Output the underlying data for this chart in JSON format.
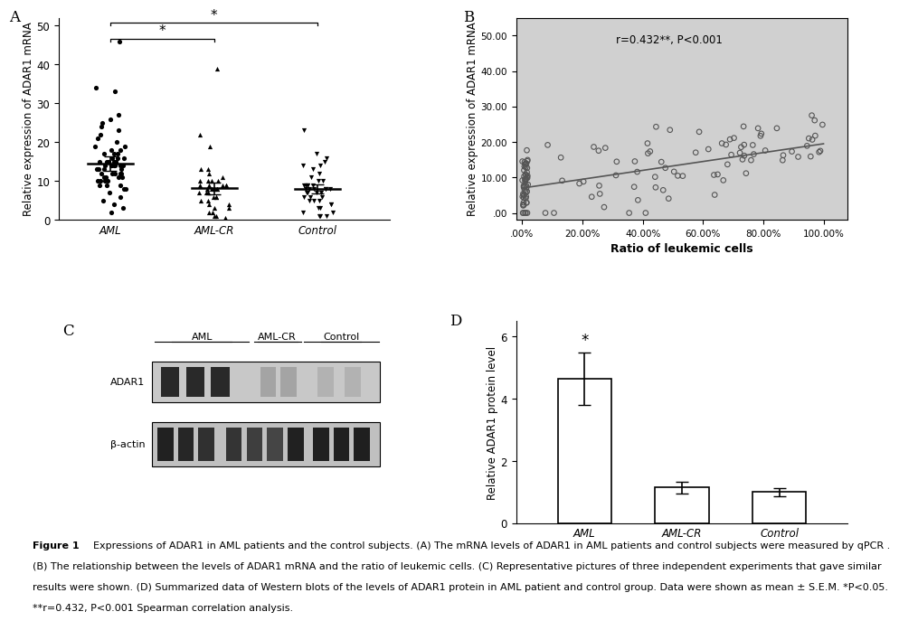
{
  "panel_A": {
    "label": "A",
    "groups": [
      "AML",
      "AML-CR",
      "Control"
    ],
    "AML_mean": 14.5,
    "AML_sem": 1.8,
    "AMLCR_mean": 8.2,
    "AMLCR_sem": 1.5,
    "Control_mean": 8.0,
    "Control_sem": 1.2,
    "ylabel": "Relative expression of ADAR1 mRNA",
    "ylim": [
      0,
      52
    ],
    "yticks": [
      0,
      10,
      20,
      30,
      40,
      50
    ],
    "AML_dots": [
      46,
      34,
      33,
      27,
      26,
      25,
      24,
      23,
      22,
      21,
      20,
      19,
      19,
      18,
      18,
      17,
      17,
      17,
      16,
      16,
      16,
      15,
      15,
      15,
      15,
      15,
      15,
      14,
      14,
      14,
      14,
      14,
      14,
      14,
      13,
      13,
      13,
      13,
      13,
      12,
      12,
      12,
      12,
      12,
      11,
      11,
      11,
      11,
      10,
      10,
      10,
      10,
      9,
      9,
      9,
      8,
      8,
      7,
      6,
      5,
      4,
      3,
      2
    ],
    "AMLCR_dots": [
      39,
      22,
      19,
      13,
      13,
      12,
      11,
      10,
      10,
      10,
      10,
      9,
      9,
      9,
      9,
      9,
      8,
      8,
      8,
      8,
      8,
      7,
      7,
      7,
      7,
      6,
      6,
      6,
      5,
      5,
      4,
      4,
      3,
      3,
      2,
      2,
      1,
      1,
      0.5
    ],
    "Control_dots": [
      23,
      17,
      16,
      15,
      14,
      14,
      13,
      12,
      11,
      10,
      10,
      9,
      9,
      9,
      9,
      9,
      8,
      8,
      8,
      8,
      8,
      8,
      7,
      7,
      7,
      7,
      6,
      6,
      6,
      5,
      5,
      5,
      4,
      4,
      3,
      3,
      2,
      2,
      1,
      1,
      1
    ]
  },
  "panel_B": {
    "label": "B",
    "annotation": "r=0.432**, P<0.001",
    "xlabel": "Ratio of leukemic cells",
    "ylabel": "Relative expression of ADAR1 mRNA",
    "xlim": [
      -0.02,
      1.08
    ],
    "ylim": [
      -2,
      55
    ],
    "xticks": [
      0.0,
      0.2,
      0.4,
      0.6,
      0.8,
      1.0
    ],
    "xticklabels": [
      ".00%",
      "20.00%",
      "40.00%",
      "60.00%",
      "80.00%",
      "100.00%"
    ],
    "yticks": [
      0,
      10,
      20,
      30,
      40,
      50
    ],
    "yticklabels": [
      ".00",
      "10.00",
      "20.00",
      "30.00",
      "40.00",
      "50.00"
    ],
    "slope": 12.5,
    "intercept": 7.0,
    "bg_color": "#d0d0d0"
  },
  "panel_D": {
    "label": "D",
    "groups": [
      "AML",
      "AML-CR",
      "Control"
    ],
    "values": [
      4.65,
      1.15,
      1.0
    ],
    "errors": [
      0.85,
      0.18,
      0.12
    ],
    "ylabel": "Relative ADAR1 protein level",
    "ylim": [
      0,
      6.5
    ],
    "yticks": [
      0,
      2,
      4,
      6
    ],
    "bar_color": "#ffffff",
    "bar_edgecolor": "#000000",
    "significance": "*"
  },
  "caption_line1": "Figure 1  Expressions of ADAR1 in AML patients and the control subjects. (A) The mRNA levels of ADAR1 in AML patients and control subjects were measured by qPCR .",
  "caption_line2": "(B) The relationship between the levels of ADAR1 mRNA and the ratio of leukemic cells. (C) Representative pictures of three independent experiments that gave similar",
  "caption_line3": "results were shown. (D) Summarized data of Western blots of the levels of ADAR1 protein in AML patient and control group. Data were shown as mean ± S.E.M. *P<0.05.",
  "caption_line4": "**r=0.432, P<0.001 Spearman correlation analysis.",
  "bg_color": "#ffffff"
}
